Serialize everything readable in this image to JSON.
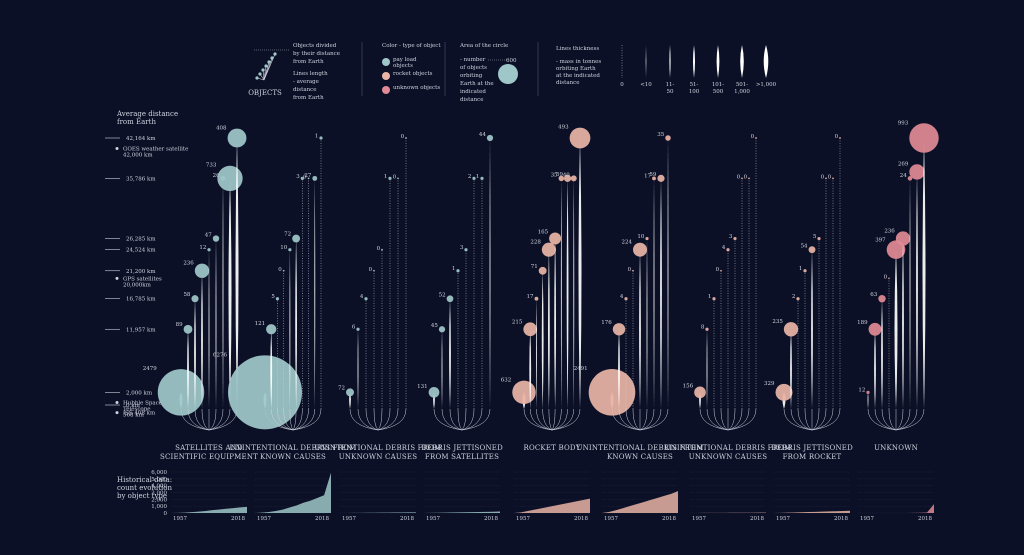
{
  "legend": {
    "objects_label": "OBJECTS",
    "divided_text": [
      "Objects divided",
      "by their distance",
      "from Earth"
    ],
    "length_text": [
      "Lines length",
      "- average",
      "distance",
      "from Earth"
    ],
    "color_title": "Color - type of object",
    "color_items": [
      {
        "label": "pay load objects",
        "color": "#9fc7c9"
      },
      {
        "label": "rocket objects",
        "color": "#eab4a6"
      },
      {
        "label": "unknown objects",
        "color": "#e08a95"
      }
    ],
    "area_title": "Area of the circle",
    "area_text": [
      "- number",
      "of objects",
      "orbiting",
      "Earth at the",
      "indicated",
      "distance"
    ],
    "area_value": "600",
    "thickness_title": "Lines thickness",
    "thickness_text": [
      "- mass in tonnes",
      "orbiting Earth",
      "at the indicated",
      "distance"
    ],
    "thickness_scale": [
      "0",
      "<10",
      "11-\n50",
      "51-\n100",
      "101-\n500",
      "501-\n1,000",
      ">1,000"
    ]
  },
  "axis": {
    "title": "Average distance from Earth",
    "ticks": [
      {
        "label": "42,164 km",
        "km": 42164
      },
      {
        "label": "35,786 km",
        "km": 35786
      },
      {
        "label": "26,285 km",
        "km": 26285
      },
      {
        "label": "24,524 km",
        "km": 24524
      },
      {
        "label": "21,200 km",
        "km": 21200
      },
      {
        "label": "16,785 km",
        "km": 16785
      },
      {
        "label": "11,957 km",
        "km": 11957
      },
      {
        "label": "2,000 km",
        "km": 2000
      },
      {
        "label": "0 km",
        "km": 0
      }
    ],
    "notes": [
      {
        "text": "GOES weather satellite 42,000 km",
        "km": 40500
      },
      {
        "text": "GPS satellites 20,000km",
        "km": 20000
      },
      {
        "text": "Hubble Space Telescope 568 km",
        "km": 400
      },
      {
        "text": "ISS 408 km",
        "km": -1200
      }
    ]
  },
  "chart_data": {
    "type": "scatter",
    "title": "",
    "ylabel": "Average distance from Earth",
    "ylim": [
      0,
      42164
    ],
    "series": [
      {
        "name": "SATELLITES AND SCIENTIFIC EQUIPMENT",
        "kind": "payload",
        "points": [
          {
            "n": 2479,
            "km": 2000
          },
          {
            "n": 89,
            "km": 11957
          },
          {
            "n": 58,
            "km": 16785
          },
          {
            "n": 236,
            "km": 21200
          },
          {
            "n": 12,
            "km": 24524
          },
          {
            "n": 47,
            "km": 26285
          },
          {
            "n": 26,
            "km": 35786
          },
          {
            "n": 733,
            "km": 35786
          },
          {
            "n": 408,
            "km": 42164
          }
        ]
      },
      {
        "name": "UNINTENTIONAL DEBRIS FROM KNOWN CAUSES",
        "kind": "payload",
        "points": [
          {
            "n": 6276,
            "km": 2000
          },
          {
            "n": 121,
            "km": 11957
          },
          {
            "n": 5,
            "km": 16785
          },
          {
            "n": 0,
            "km": 21200
          },
          {
            "n": 10,
            "km": 24524
          },
          {
            "n": 72,
            "km": 26285
          },
          {
            "n": 3,
            "km": 35786
          },
          {
            "n": 0,
            "km": 35786
          },
          {
            "n": 27,
            "km": 35786
          },
          {
            "n": 1,
            "km": 42164
          }
        ]
      },
      {
        "name": "UNINTENTIONAL DEBRIS FROM UNKNOWN CAUSES",
        "kind": "payload",
        "points": [
          {
            "n": 72,
            "km": 2000
          },
          {
            "n": 6,
            "km": 11957
          },
          {
            "n": 4,
            "km": 16785
          },
          {
            "n": 0,
            "km": 21200
          },
          {
            "n": 0,
            "km": 24524
          },
          {
            "n": 1,
            "km": 35786
          },
          {
            "n": 0,
            "km": 35786
          },
          {
            "n": 0,
            "km": 42164
          }
        ]
      },
      {
        "name": "DEBRIS JETTISONED FROM SATELLITES",
        "kind": "payload",
        "points": [
          {
            "n": 131,
            "km": 2000
          },
          {
            "n": 45,
            "km": 11957
          },
          {
            "n": 52,
            "km": 16785
          },
          {
            "n": 1,
            "km": 21200
          },
          {
            "n": 3,
            "km": 24524
          },
          {
            "n": 2,
            "km": 35786
          },
          {
            "n": 1,
            "km": 35786
          },
          {
            "n": 44,
            "km": 42164
          }
        ]
      },
      {
        "name": "ROCKET BODY",
        "kind": "rocket",
        "points": [
          {
            "n": 632,
            "km": 2000
          },
          {
            "n": 215,
            "km": 11957
          },
          {
            "n": 17,
            "km": 16785
          },
          {
            "n": 71,
            "km": 21200
          },
          {
            "n": 228,
            "km": 24524
          },
          {
            "n": 165,
            "km": 26285
          },
          {
            "n": 35,
            "km": 35786
          },
          {
            "n": 59,
            "km": 35786
          },
          {
            "n": 40,
            "km": 35786
          },
          {
            "n": 493,
            "km": 42164
          }
        ]
      },
      {
        "name": "UNINTENTIONAL DEBRIS FROM KNOWN CAUSES",
        "kind": "rocket",
        "points": [
          {
            "n": 2491,
            "km": 2000
          },
          {
            "n": 176,
            "km": 11957
          },
          {
            "n": 4,
            "km": 16785
          },
          {
            "n": 0,
            "km": 21200
          },
          {
            "n": 224,
            "km": 24524
          },
          {
            "n": 10,
            "km": 26285
          },
          {
            "n": 17,
            "km": 35786
          },
          {
            "n": 59,
            "km": 35786
          },
          {
            "n": 35,
            "km": 42164
          }
        ]
      },
      {
        "name": "UNINTENTIONAL DEBRIS FROM UNKNOWN CAUSES",
        "kind": "rocket",
        "points": [
          {
            "n": 156,
            "km": 2000
          },
          {
            "n": 8,
            "km": 11957
          },
          {
            "n": 1,
            "km": 16785
          },
          {
            "n": 0,
            "km": 21200
          },
          {
            "n": 4,
            "km": 24524
          },
          {
            "n": 3,
            "km": 26285
          },
          {
            "n": 0,
            "km": 35786
          },
          {
            "n": 0,
            "km": 35786
          },
          {
            "n": 0,
            "km": 42164
          }
        ]
      },
      {
        "name": "DEBRIS JETTISONED FROM ROCKET",
        "kind": "rocket",
        "points": [
          {
            "n": 329,
            "km": 2000
          },
          {
            "n": 235,
            "km": 11957
          },
          {
            "n": 2,
            "km": 16785
          },
          {
            "n": 1,
            "km": 21200
          },
          {
            "n": 54,
            "km": 24524
          },
          {
            "n": 5,
            "km": 26285
          },
          {
            "n": 0,
            "km": 35786
          },
          {
            "n": 0,
            "km": 35786
          },
          {
            "n": 0,
            "km": 42164
          }
        ]
      },
      {
        "name": "UNKNOWN",
        "kind": "unknown",
        "points": [
          {
            "n": 12,
            "km": 2000
          },
          {
            "n": 189,
            "km": 11957
          },
          {
            "n": 63,
            "km": 16785
          },
          {
            "n": 0,
            "km": 20000
          },
          {
            "n": 397,
            "km": 24524
          },
          {
            "n": 236,
            "km": 26285
          },
          {
            "n": 24,
            "km": 35786
          },
          {
            "n": 269,
            "km": 36800
          },
          {
            "n": 993,
            "km": 42164
          }
        ]
      }
    ],
    "history": {
      "title": "Historical data: count evolution by object type",
      "yticks": [
        "6,000",
        "5,000",
        "4,000",
        "3,000",
        "2,000",
        "1,000",
        "0"
      ],
      "start_label": "1957",
      "end_label": "2018",
      "ylim": [
        0,
        6000
      ],
      "series": [
        {
          "name": "SATELLITES AND SCIENTIFIC EQUIPMENT",
          "values": [
            0,
            20,
            60,
            120,
            200,
            300,
            420,
            520,
            620,
            720,
            820,
            900
          ]
        },
        {
          "name": "UNINTENTIONAL DEBRIS FROM KNOWN CAUSES",
          "values": [
            0,
            50,
            150,
            300,
            500,
            800,
            1100,
            1500,
            1800,
            2200,
            2600,
            5900
          ]
        },
        {
          "name": "UNINTENTIONAL DEBRIS FROM UNKNOWN CAUSES",
          "values": [
            0,
            5,
            10,
            20,
            30,
            40,
            50,
            60,
            70,
            80,
            90,
            100
          ]
        },
        {
          "name": "DEBRIS JETTISONED FROM SATELLITES",
          "values": [
            0,
            10,
            30,
            50,
            70,
            90,
            110,
            130,
            150,
            170,
            190,
            220
          ]
        },
        {
          "name": "ROCKET BODY",
          "values": [
            0,
            100,
            300,
            500,
            700,
            900,
            1100,
            1300,
            1500,
            1700,
            1900,
            2100
          ]
        },
        {
          "name": "UNINTENTIONAL DEBRIS FROM KNOWN CAUSES",
          "values": [
            0,
            150,
            400,
            700,
            1000,
            1300,
            1600,
            1900,
            2200,
            2500,
            2800,
            3200
          ]
        },
        {
          "name": "UNINTENTIONAL DEBRIS FROM UNKNOWN CAUSES",
          "values": [
            0,
            5,
            10,
            15,
            20,
            25,
            30,
            35,
            40,
            45,
            50,
            60
          ]
        },
        {
          "name": "DEBRIS JETTISONED FROM ROCKET",
          "values": [
            0,
            20,
            50,
            80,
            110,
            140,
            170,
            200,
            230,
            260,
            290,
            330
          ]
        },
        {
          "name": "UNKNOWN",
          "values": [
            0,
            0,
            0,
            0,
            0,
            0,
            0,
            0,
            10,
            30,
            80,
            1300
          ]
        }
      ]
    }
  },
  "colors": {
    "payload": "#9fc7c9",
    "rocket": "#eab4a6",
    "unknown": "#e08a95",
    "background": "#0c1026"
  }
}
